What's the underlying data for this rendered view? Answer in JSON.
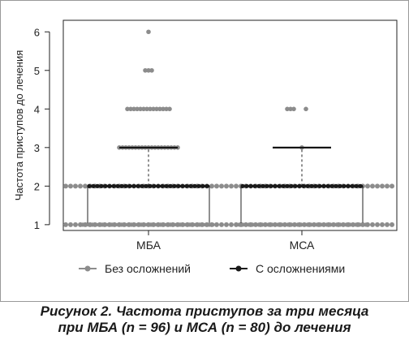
{
  "chart_data": {
    "type": "box",
    "ylabel": "Частота приступов до лечения",
    "xlabel": "",
    "ylim": [
      0.85,
      6.3
    ],
    "yticks": [
      1,
      2,
      3,
      4,
      5,
      6
    ],
    "categories": [
      "МБА",
      "МСА"
    ],
    "grid": false,
    "legend_position": "bottom",
    "boxes": [
      {
        "category": "МБА",
        "whisker_low": 1,
        "q1": 1,
        "median": 2,
        "q3": 2,
        "whisker_high": 3
      },
      {
        "category": "МСА",
        "whisker_low": 1,
        "q1": 1,
        "median": 2,
        "q3": 2,
        "whisker_high": 3
      }
    ],
    "series": [
      {
        "name": "Без осложнений",
        "color": "#8c8c8c",
        "points": [
          {
            "category": "МБА",
            "values": [
              1,
              2
            ]
          },
          {
            "category": "МСА",
            "values": [
              1,
              2
            ]
          }
        ]
      },
      {
        "name": "С осложнениями",
        "color": "#1a1a1a",
        "points": [
          {
            "category": "МБА",
            "values": [
              1,
              2
            ]
          },
          {
            "category": "МСА",
            "values": [
              1,
              2
            ]
          }
        ]
      }
    ],
    "outliers": [
      {
        "category": "МБА",
        "value": 3,
        "color": "#8c8c8c"
      },
      {
        "category": "МБА",
        "value": 4,
        "color": "#8c8c8c"
      },
      {
        "category": "МБА",
        "value": 5,
        "color": "#8c8c8c"
      },
      {
        "category": "МБА",
        "value": 6,
        "color": "#8c8c8c"
      },
      {
        "category": "МСА",
        "value": 3,
        "color": "#8c8c8c"
      },
      {
        "category": "МСА",
        "value": 4,
        "color": "#8c8c8c"
      }
    ]
  },
  "caption": {
    "line1": "Рисунок 2. Частота приступов за три месяца",
    "line2": "при МБА (n = 96) и МСА (n = 80) до лечения"
  }
}
